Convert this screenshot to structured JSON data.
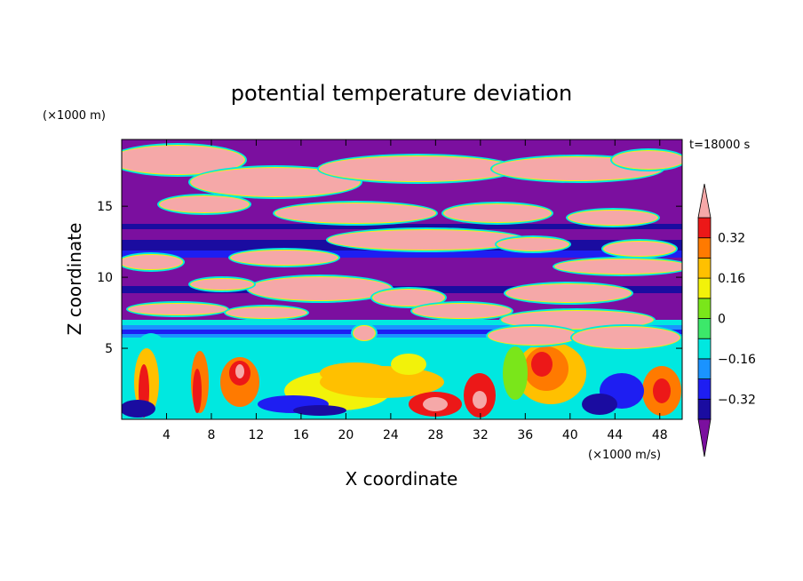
{
  "chart_data": {
    "type": "heatmap",
    "title": "potential temperature deviation",
    "xlabel": "X coordinate",
    "ylabel": "Z coordinate",
    "x_unit": "(×1000 m/s)",
    "y_unit": "(×1000 m)",
    "time_label": "t=18000 s",
    "xlim": [
      0,
      50
    ],
    "ylim": [
      0,
      19.7
    ],
    "x_ticks": [
      4,
      8,
      12,
      16,
      20,
      24,
      28,
      32,
      36,
      40,
      44,
      48
    ],
    "y_ticks": [
      5,
      10,
      15
    ],
    "colorbar": {
      "levels": [
        -0.4,
        -0.32,
        -0.24,
        -0.16,
        -0.08,
        0,
        0.08,
        0.16,
        0.24,
        0.32,
        0.4
      ],
      "tick_labels": [
        "0.32",
        "0.16",
        "0",
        "−0.16",
        "−0.32"
      ],
      "tick_values": [
        0.32,
        0.16,
        0,
        -0.16,
        -0.32
      ],
      "extend": "both",
      "colors": {
        "below": "#7b0f9f",
        "bands": [
          "#1a0ca0",
          "#1e1ef2",
          "#1a93ff",
          "#00e8e0",
          "#3ce86a",
          "#7ae61a",
          "#f2f20a",
          "#ffc000",
          "#ff7a00",
          "#ec1818"
        ],
        "above": "#f5a8a8"
      }
    },
    "description_of_field": {
      "lower_layer": {
        "z_range": [
          0,
          5.5
        ],
        "character": "mixed warm and cool plumes, range -0.4 to above 0.4"
      },
      "stable_band": {
        "z_range": [
          5.5,
          7
        ],
        "character": "cyan to blue layer around -0.1 to -0.2"
      },
      "upper_layers": {
        "z_range": [
          7,
          19.7
        ],
        "character": "mostly below -0.4 with filaments above 0.4"
      }
    }
  }
}
